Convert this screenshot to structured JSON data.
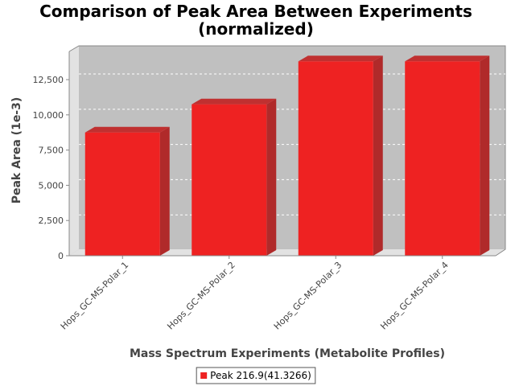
{
  "chart_data": {
    "type": "bar",
    "title": "Comparison of Peak Area Between Experiments",
    "subtitle": "(normalized)",
    "xlabel": "Mass Spectrum Experiments (Metabolite Profiles)",
    "ylabel": "Peak Area (1e-3)",
    "categories": [
      "Hops_GC-MS-Polar_1",
      "Hops_GC-MS-Polar_2",
      "Hops_GC-MS-Polar_3",
      "Hops_GC-MS-Polar_4"
    ],
    "series": [
      {
        "name": "Peak 216.9(41.3266)",
        "values": [
          8750,
          10750,
          13800,
          13800
        ],
        "color": "#ee2222"
      }
    ],
    "ylim": [
      0,
      14500
    ],
    "yticks": [
      0,
      2500,
      5000,
      7500,
      10000,
      12500
    ],
    "ytick_labels": [
      "0",
      "2,500",
      "5,000",
      "7,500",
      "10,000",
      "12,500"
    ],
    "grid": true,
    "legend_position": "bottom-center",
    "style": "3d",
    "plot_background": "#c0c0c0"
  }
}
